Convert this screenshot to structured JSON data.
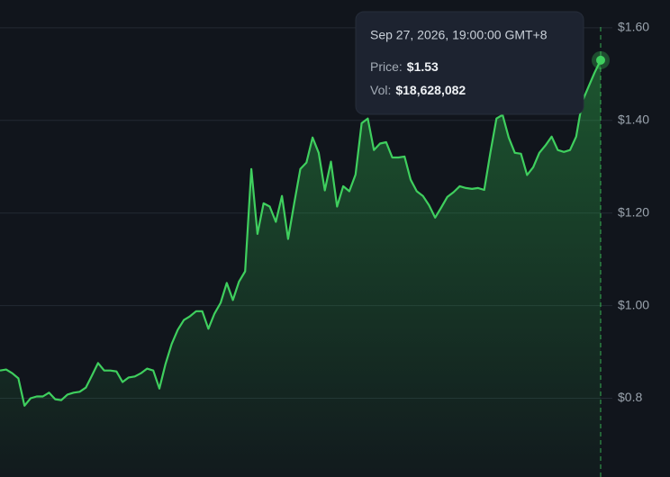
{
  "chart_data": {
    "type": "line",
    "color": "#3fcf5e",
    "values": [
      0.86,
      0.862,
      0.854,
      0.843,
      0.784,
      0.8,
      0.804,
      0.804,
      0.812,
      0.798,
      0.796,
      0.808,
      0.812,
      0.814,
      0.823,
      0.849,
      0.876,
      0.86,
      0.86,
      0.858,
      0.835,
      0.845,
      0.847,
      0.854,
      0.864,
      0.86,
      0.821,
      0.874,
      0.917,
      0.948,
      0.969,
      0.977,
      0.988,
      0.988,
      0.95,
      0.983,
      1.006,
      1.049,
      1.012,
      1.052,
      1.074,
      1.295,
      1.155,
      1.221,
      1.214,
      1.181,
      1.237,
      1.144,
      1.221,
      1.295,
      1.309,
      1.363,
      1.33,
      1.249,
      1.311,
      1.214,
      1.258,
      1.247,
      1.283,
      1.394,
      1.404,
      1.336,
      1.35,
      1.353,
      1.32,
      1.32,
      1.322,
      1.272,
      1.247,
      1.237,
      1.217,
      1.19,
      1.212,
      1.235,
      1.245,
      1.258,
      1.254,
      1.252,
      1.254,
      1.25,
      1.33,
      1.404,
      1.412,
      1.363,
      1.33,
      1.328,
      1.282,
      1.299,
      1.33,
      1.346,
      1.365,
      1.336,
      1.332,
      1.336,
      1.365,
      1.441,
      1.472,
      1.503,
      1.53
    ],
    "ylim": [
      0.63,
      1.66
    ],
    "yticks": [
      {
        "value": 1.6,
        "label": "$1.60"
      },
      {
        "value": 1.4,
        "label": "$1.40"
      },
      {
        "value": 1.2,
        "label": "$1.20"
      },
      {
        "value": 1.0,
        "label": "$1.00"
      },
      {
        "value": 0.8,
        "label": "$0.8"
      }
    ],
    "grid": true,
    "tooltip": {
      "date": "Sep 27, 2026, 19:00:00 GMT+8",
      "rows": [
        {
          "label": "Price:",
          "value": "$1.53"
        },
        {
          "label": "Vol:",
          "value": "$18,628,082"
        }
      ]
    }
  }
}
